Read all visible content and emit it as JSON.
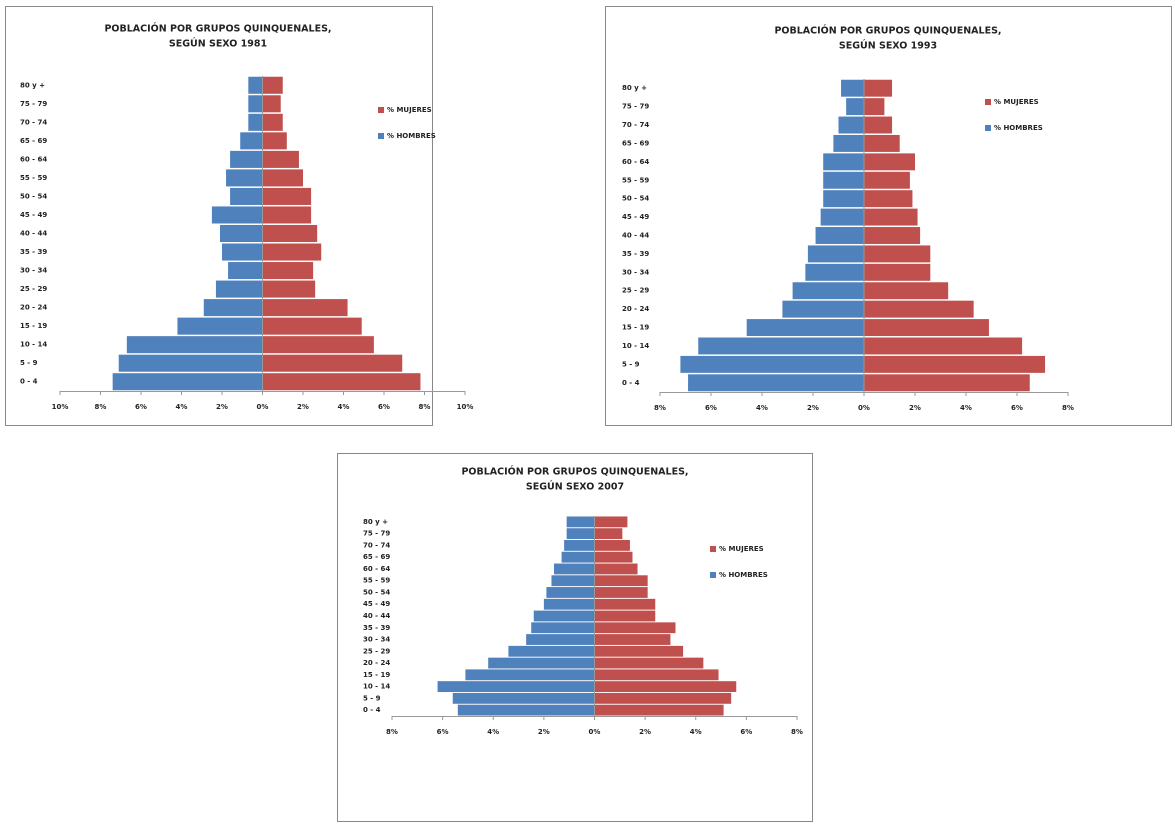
{
  "chart_data": [
    {
      "type": "bar",
      "orientation": "horizontal",
      "title": [
        "POBLACIÓN POR GRUPOS QUINQUENALES,",
        "SEGÚN SEXO 1981"
      ],
      "categories": [
        "0 - 4",
        "5 - 9",
        "10 - 14",
        "15 - 19",
        "20 - 24",
        "25 - 29",
        "30 - 34",
        "35 - 39",
        "40 - 44",
        "45 - 49",
        "50 - 54",
        "55 - 59",
        "60 - 64",
        "65 - 69",
        "70 - 74",
        "75 - 79",
        "80 y +"
      ],
      "series": [
        {
          "name": "% MUJERES",
          "color": "#c0504d",
          "values": [
            7.8,
            6.9,
            5.5,
            4.9,
            4.2,
            2.6,
            2.5,
            2.9,
            2.7,
            2.4,
            2.4,
            2.0,
            1.8,
            1.2,
            1.0,
            0.9,
            1.0
          ]
        },
        {
          "name": "% HOMBRES",
          "color": "#4f81bd",
          "values": [
            -7.4,
            -7.1,
            -6.7,
            -4.2,
            -2.9,
            -2.3,
            -1.7,
            -2.0,
            -2.1,
            -2.5,
            -1.6,
            -1.8,
            -1.6,
            -1.1,
            -0.7,
            -0.7,
            -0.7
          ]
        }
      ],
      "xlim": [
        -10,
        10
      ],
      "xticks": [
        {
          "value": -10,
          "label": "10%"
        },
        {
          "value": -8,
          "label": "8%"
        },
        {
          "value": -6,
          "label": "6%"
        },
        {
          "value": -4,
          "label": "4%"
        },
        {
          "value": -2,
          "label": "2%"
        },
        {
          "value": 0,
          "label": "0%"
        },
        {
          "value": 2,
          "label": "2%"
        },
        {
          "value": 4,
          "label": "4%"
        },
        {
          "value": 6,
          "label": "6%"
        },
        {
          "value": 8,
          "label": "8%"
        },
        {
          "value": 10,
          "label": "10%"
        }
      ]
    },
    {
      "type": "bar",
      "orientation": "horizontal",
      "title": [
        "POBLACIÓN POR GRUPOS QUINQUENALES,",
        "SEGÚN SEXO 1993"
      ],
      "categories": [
        "0 - 4",
        "5 - 9",
        "10 - 14",
        "15 - 19",
        "20 - 24",
        "25 - 29",
        "30 - 34",
        "35 - 39",
        "40 - 44",
        "45 - 49",
        "50 - 54",
        "55 - 59",
        "60 - 64",
        "65 - 69",
        "70 - 74",
        "75 - 79",
        "80 y +"
      ],
      "series": [
        {
          "name": "% MUJERES",
          "color": "#c0504d",
          "values": [
            6.5,
            7.1,
            6.2,
            4.9,
            4.3,
            3.3,
            2.6,
            2.6,
            2.2,
            2.1,
            1.9,
            1.8,
            2.0,
            1.4,
            1.1,
            0.8,
            1.1
          ]
        },
        {
          "name": "% HOMBRES",
          "color": "#4f81bd",
          "values": [
            -6.9,
            -7.2,
            -6.5,
            -4.6,
            -3.2,
            -2.8,
            -2.3,
            -2.2,
            -1.9,
            -1.7,
            -1.6,
            -1.6,
            -1.6,
            -1.2,
            -1.0,
            -0.7,
            -0.9
          ]
        }
      ],
      "xlim": [
        -8,
        8
      ],
      "xticks": [
        {
          "value": -8,
          "label": "8%"
        },
        {
          "value": -6,
          "label": "6%"
        },
        {
          "value": -4,
          "label": "4%"
        },
        {
          "value": -2,
          "label": "2%"
        },
        {
          "value": 0,
          "label": "0%"
        },
        {
          "value": 2,
          "label": "2%"
        },
        {
          "value": 4,
          "label": "4%"
        },
        {
          "value": 6,
          "label": "6%"
        },
        {
          "value": 8,
          "label": "8%"
        }
      ]
    },
    {
      "type": "bar",
      "orientation": "horizontal",
      "title": [
        "POBLACIÓN POR GRUPOS QUINQUENALES,",
        "SEGÚN SEXO 2007"
      ],
      "categories": [
        "0 - 4",
        "5 - 9",
        "10 - 14",
        "15 - 19",
        "20 - 24",
        "25 - 29",
        "30 - 34",
        "35 - 39",
        "40 - 44",
        "45 - 49",
        "50 - 54",
        "55 - 59",
        "60 - 64",
        "65 - 69",
        "70 - 74",
        "75 - 79",
        "80 y +"
      ],
      "series": [
        {
          "name": "% MUJERES",
          "color": "#c0504d",
          "values": [
            5.1,
            5.4,
            5.6,
            4.9,
            4.3,
            3.5,
            3.0,
            3.2,
            2.4,
            2.4,
            2.1,
            2.1,
            1.7,
            1.5,
            1.4,
            1.1,
            1.3
          ]
        },
        {
          "name": "% HOMBRES",
          "color": "#4f81bd",
          "values": [
            -5.4,
            -5.6,
            -6.2,
            -5.1,
            -4.2,
            -3.4,
            -2.7,
            -2.5,
            -2.4,
            -2.0,
            -1.9,
            -1.7,
            -1.6,
            -1.3,
            -1.2,
            -1.1,
            -1.1
          ]
        }
      ],
      "xlim": [
        -8,
        8
      ],
      "xticks": [
        {
          "value": -8,
          "label": "8%"
        },
        {
          "value": -6,
          "label": "6%"
        },
        {
          "value": -4,
          "label": "4%"
        },
        {
          "value": -2,
          "label": "2%"
        },
        {
          "value": 0,
          "label": "0%"
        },
        {
          "value": 2,
          "label": "2%"
        },
        {
          "value": 4,
          "label": "4%"
        },
        {
          "value": 6,
          "label": "6%"
        },
        {
          "value": 8,
          "label": "8%"
        }
      ]
    }
  ]
}
